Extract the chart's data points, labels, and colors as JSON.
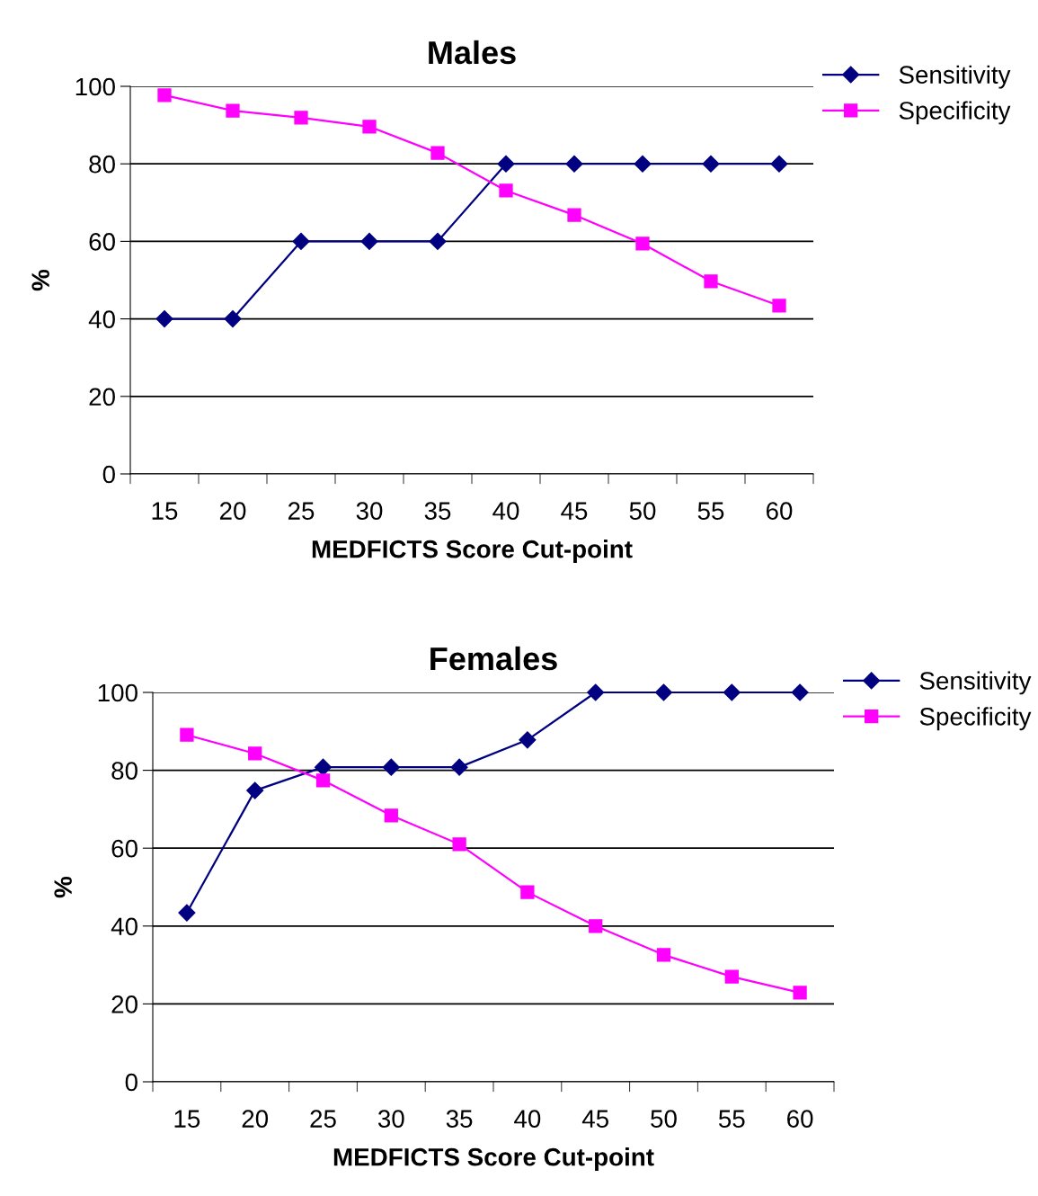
{
  "chart_data": [
    {
      "type": "line",
      "title": "Males",
      "xlabel": "MEDFICTS Score Cut-point",
      "ylabel": "%",
      "categories": [
        "15",
        "20",
        "25",
        "30",
        "35",
        "40",
        "45",
        "50",
        "55",
        "60"
      ],
      "series": [
        {
          "name": "Sensitivity",
          "color": "#000080",
          "marker": "diamond",
          "values": [
            40,
            40,
            60,
            60,
            60,
            80,
            80,
            80,
            80,
            80
          ]
        },
        {
          "name": "Specificity",
          "color": "#ff00ff",
          "marker": "square",
          "values": [
            97.7,
            93.7,
            91.9,
            89.6,
            82.8,
            73.1,
            66.8,
            59.4,
            49.7,
            43.4
          ]
        }
      ],
      "ylim": [
        0,
        100
      ],
      "yticks": [
        0,
        20,
        40,
        60,
        80,
        100
      ],
      "grid": "y",
      "legend": "top right",
      "line_style": "solid"
    },
    {
      "type": "line",
      "title": "Females",
      "xlabel": "MEDFICTS Score Cut-point",
      "ylabel": "%",
      "categories": [
        "15",
        "20",
        "25",
        "30",
        "35",
        "40",
        "45",
        "50",
        "55",
        "60"
      ],
      "series": [
        {
          "name": "Sensitivity",
          "color": "#000080",
          "marker": "diamond",
          "values": [
            43.4,
            74.8,
            80.8,
            80.8,
            80.8,
            87.8,
            100,
            100,
            100,
            100
          ]
        },
        {
          "name": "Specificity",
          "color": "#ff00ff",
          "marker": "square",
          "values": [
            89.1,
            84.3,
            77.4,
            68.4,
            61.0,
            48.7,
            40.0,
            32.6,
            27.0,
            22.9
          ]
        }
      ],
      "ylim": [
        0,
        100
      ],
      "yticks": [
        0,
        20,
        40,
        60,
        80,
        100
      ],
      "grid": "y",
      "legend": "top right",
      "line_style": "solid"
    }
  ]
}
